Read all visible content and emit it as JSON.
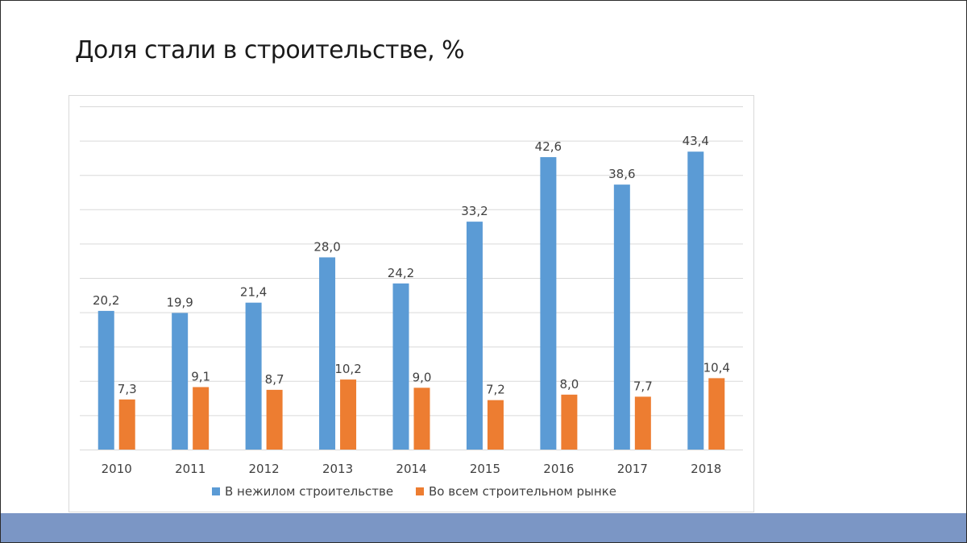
{
  "slide": {
    "title": "Доля стали в строительстве, %"
  },
  "colors": {
    "series1": "#5b9bd5",
    "series2": "#ed7d31",
    "grid": "#d9d9d9",
    "band": "#7b96c5"
  },
  "chart_data": {
    "type": "bar",
    "title": "Доля стали в строительстве, %",
    "xlabel": "",
    "ylabel": "",
    "categories": [
      "2010",
      "2011",
      "2012",
      "2013",
      "2014",
      "2015",
      "2016",
      "2017",
      "2018"
    ],
    "series": [
      {
        "name": "В нежилом строительстве",
        "values": [
          20.2,
          19.9,
          21.4,
          28.0,
          24.2,
          33.2,
          42.6,
          38.6,
          43.4
        ],
        "labels": [
          "20,2",
          "19,9",
          "21,4",
          "28,0",
          "24,2",
          "33,2",
          "42,6",
          "38,6",
          "43,4"
        ]
      },
      {
        "name": "Во всем строительном рынке",
        "values": [
          7.3,
          9.1,
          8.7,
          10.2,
          9.0,
          7.2,
          8.0,
          7.7,
          10.4
        ],
        "labels": [
          "7,3",
          "9,1",
          "8,7",
          "10,2",
          "9,0",
          "7,2",
          "8,0",
          "7,7",
          "10,4"
        ]
      }
    ],
    "ylim": [
      0,
      50
    ],
    "y_axis_visible": false,
    "grid": true,
    "legend": "bottom"
  }
}
